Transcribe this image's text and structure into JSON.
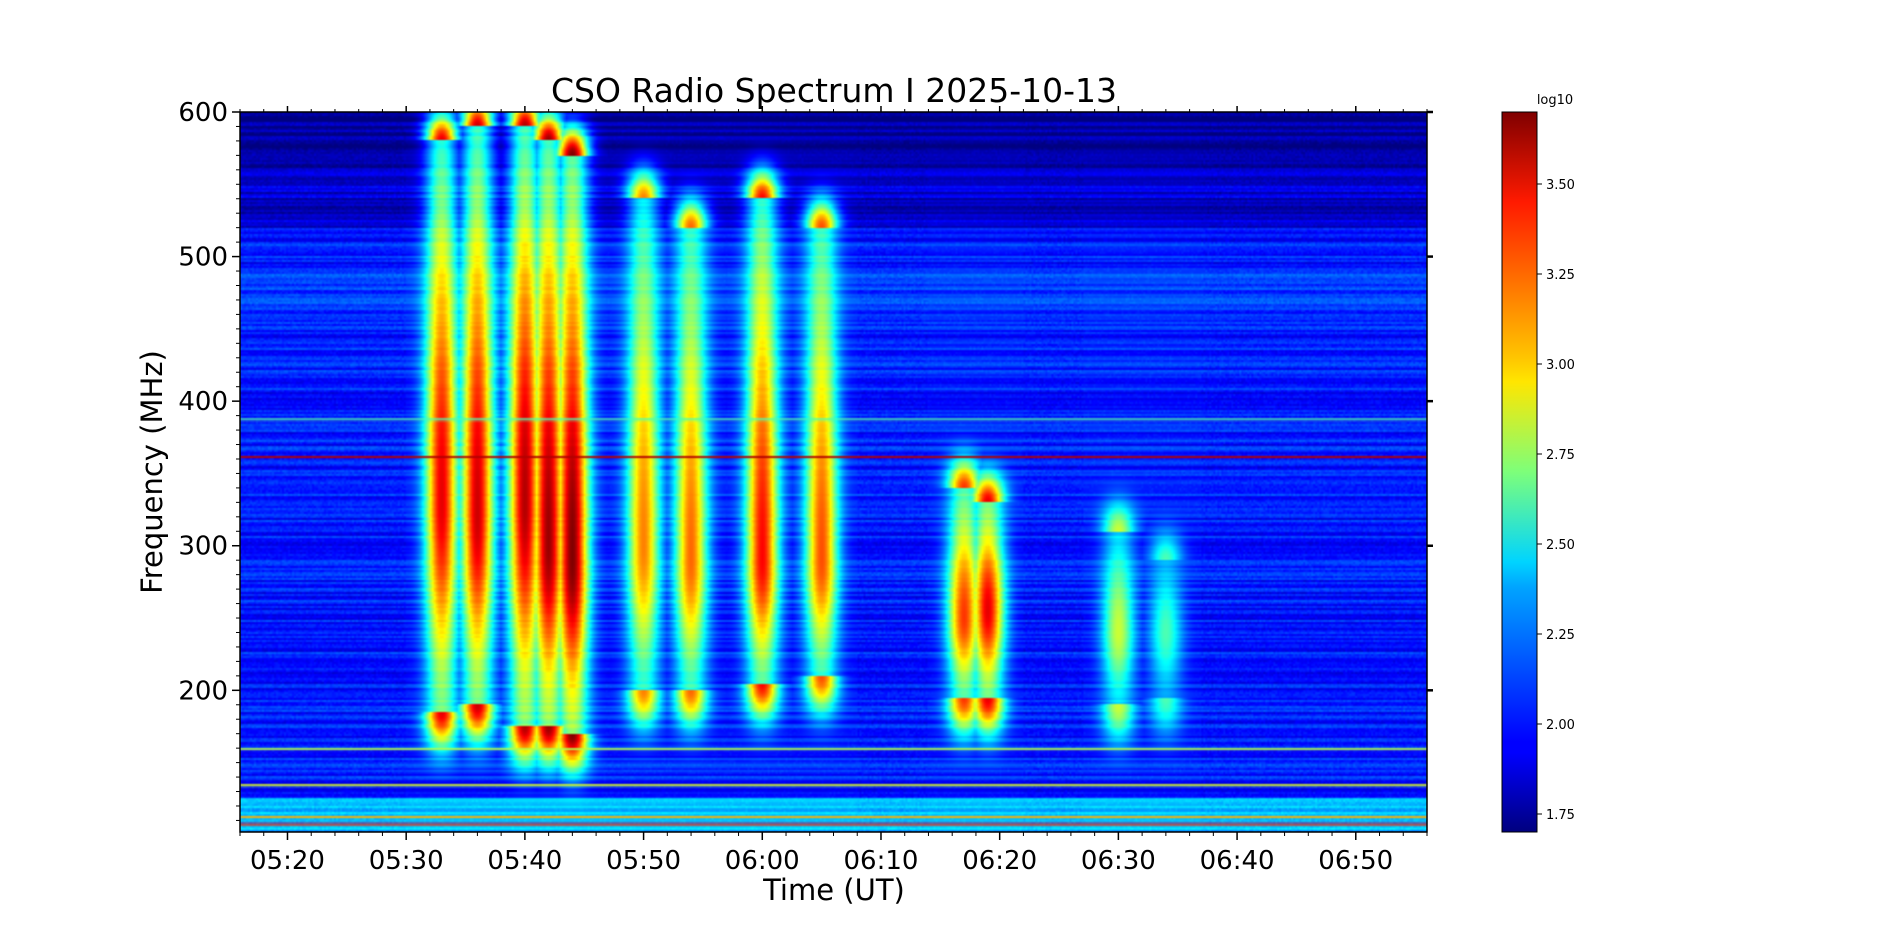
{
  "chart_data": {
    "type": "heatmap",
    "title": "CSO Radio Spectrum I 2025-10-13",
    "xlabel": "Time (UT)",
    "ylabel": "Frequency (MHz)",
    "x_unit": "UT",
    "xlim": [
      "05:16",
      "06:56"
    ],
    "ylim": [
      102,
      600
    ],
    "x_ticks": [
      "05:20",
      "05:30",
      "05:40",
      "05:50",
      "06:00",
      "06:10",
      "06:20",
      "06:30",
      "06:40",
      "06:50"
    ],
    "y_ticks": [
      200,
      300,
      400,
      500,
      600
    ],
    "colorbar": {
      "label": "log10",
      "range": [
        1.7,
        3.7
      ],
      "ticks": [
        "1.75",
        "2.00",
        "2.25",
        "2.50",
        "2.75",
        "3.00",
        "3.25",
        "3.50"
      ],
      "colormap": "jet"
    },
    "background_level": 2.0,
    "bursts": [
      {
        "time": "05:33",
        "f_low": 185,
        "f_high": 580,
        "peak_freq": 330,
        "peak": 3.5
      },
      {
        "time": "05:36",
        "f_low": 190,
        "f_high": 590,
        "peak_freq": 320,
        "peak": 3.55
      },
      {
        "time": "05:40",
        "f_low": 175,
        "f_high": 590,
        "peak_freq": 330,
        "peak": 3.6
      },
      {
        "time": "05:42",
        "f_low": 175,
        "f_high": 580,
        "peak_freq": 300,
        "peak": 3.65
      },
      {
        "time": "05:44",
        "f_low": 170,
        "f_high": 570,
        "peak_freq": 290,
        "peak": 3.7
      },
      {
        "time": "05:50",
        "f_low": 200,
        "f_high": 540,
        "peak_freq": 300,
        "peak": 3.2
      },
      {
        "time": "05:54",
        "f_low": 200,
        "f_high": 520,
        "peak_freq": 290,
        "peak": 3.25
      },
      {
        "time": "06:00",
        "f_low": 205,
        "f_high": 540,
        "peak_freq": 290,
        "peak": 3.45
      },
      {
        "time": "06:05",
        "f_low": 210,
        "f_high": 520,
        "peak_freq": 290,
        "peak": 3.3
      },
      {
        "time": "06:17",
        "f_low": 195,
        "f_high": 340,
        "peak_freq": 250,
        "peak": 3.35
      },
      {
        "time": "06:19",
        "f_low": 195,
        "f_high": 330,
        "peak_freq": 255,
        "peak": 3.5
      },
      {
        "time": "06:30",
        "f_low": 190,
        "f_high": 310,
        "peak_freq": 240,
        "peak": 2.85
      },
      {
        "time": "06:34",
        "f_low": 195,
        "f_high": 290,
        "peak_freq": 240,
        "peak": 2.6
      }
    ],
    "bright_lines": [
      {
        "freq": 362,
        "level": 3.6
      },
      {
        "freq": 108,
        "level": 3.4
      },
      {
        "freq": 113,
        "level": 3.1
      },
      {
        "freq": 160,
        "level": 2.8
      },
      {
        "freq": 135,
        "level": 2.9
      },
      {
        "freq": 388,
        "level": 2.6
      }
    ]
  }
}
